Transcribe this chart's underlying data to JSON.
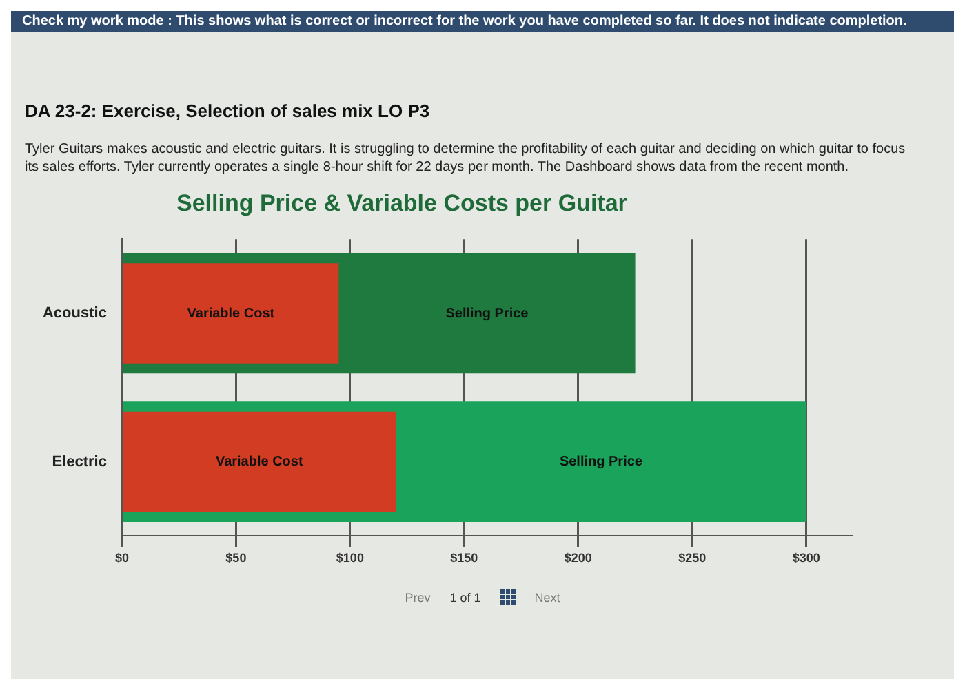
{
  "chart_data": {
    "type": "bar",
    "orientation": "horizontal",
    "title": "Selling Price & Variable Costs per Guitar",
    "annotations": [
      "Check my work mode : This shows what is correct or incorrect for the work you have completed so far. It does not indicate completion.",
      "DA 23-2: Exercise, Selection of sales mix LO P3",
      "Tyler Guitars makes acoustic and electric guitars. It is struggling to determine the profitability of each guitar and deciding on which guitar to focus its sales efforts. Tyler currently operates a single 8-hour shift for 22 days per month. The Dashboard shows data from the recent month.",
      "Prev",
      "1 of 1",
      "Next"
    ],
    "categories": [
      "Acoustic",
      "Electric"
    ],
    "series": [
      {
        "name": "Variable Cost",
        "color": "#d13c23",
        "values": [
          95,
          120
        ]
      },
      {
        "name": "Selling Price",
        "colors": [
          "#1f7a3f",
          "#1aa35a"
        ],
        "values": [
          225,
          300
        ]
      }
    ],
    "xlim": [
      0,
      320
    ],
    "xticks": [
      {
        "value": 0,
        "label": "$0"
      },
      {
        "value": 50,
        "label": "$50"
      },
      {
        "value": 100,
        "label": "$100"
      },
      {
        "value": 150,
        "label": "$150"
      },
      {
        "value": 200,
        "label": "$200"
      },
      {
        "value": 250,
        "label": "$250"
      },
      {
        "value": 300,
        "label": "$300"
      }
    ],
    "grid": "x",
    "legend": false
  }
}
